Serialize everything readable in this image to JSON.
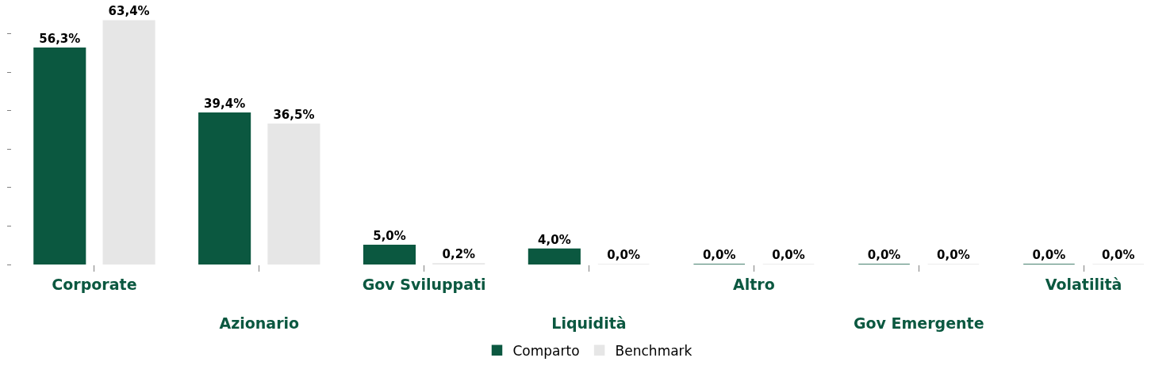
{
  "chart_data": {
    "type": "bar",
    "categories": [
      "Corporate",
      "Azionario",
      "Gov Sviluppati",
      "Liquidità",
      "Altro",
      "Gov Emergente",
      "Volatilità"
    ],
    "series": [
      {
        "name": "Comparto",
        "color": "#0b5840",
        "values": [
          56.3,
          39.4,
          5.0,
          4.0,
          0.0,
          0.0,
          0.0
        ],
        "value_labels": [
          "56,3%",
          "39,4%",
          "5,0%",
          "4,0%",
          "0,0%",
          "0,0%",
          "0,0%"
        ]
      },
      {
        "name": "Benchmark",
        "color": "#e6e6e6",
        "values": [
          63.4,
          36.5,
          0.2,
          0.0,
          0.0,
          0.0,
          0.0
        ],
        "value_labels": [
          "63,4%",
          "36,5%",
          "0,2%",
          "0,0%",
          "0,0%",
          "0,0%",
          "0,0%"
        ]
      }
    ],
    "yticks": [
      {
        "value": 0,
        "label": null
      },
      {
        "value": 10,
        "label": null
      },
      {
        "value": 20,
        "label": null
      },
      {
        "value": 30,
        "label": null
      },
      {
        "value": 40,
        "label": null
      },
      {
        "value": 50,
        "label": null
      },
      {
        "value": 60,
        "label": null
      }
    ],
    "tick_labels": "x",
    "legend": "bottom"
  }
}
